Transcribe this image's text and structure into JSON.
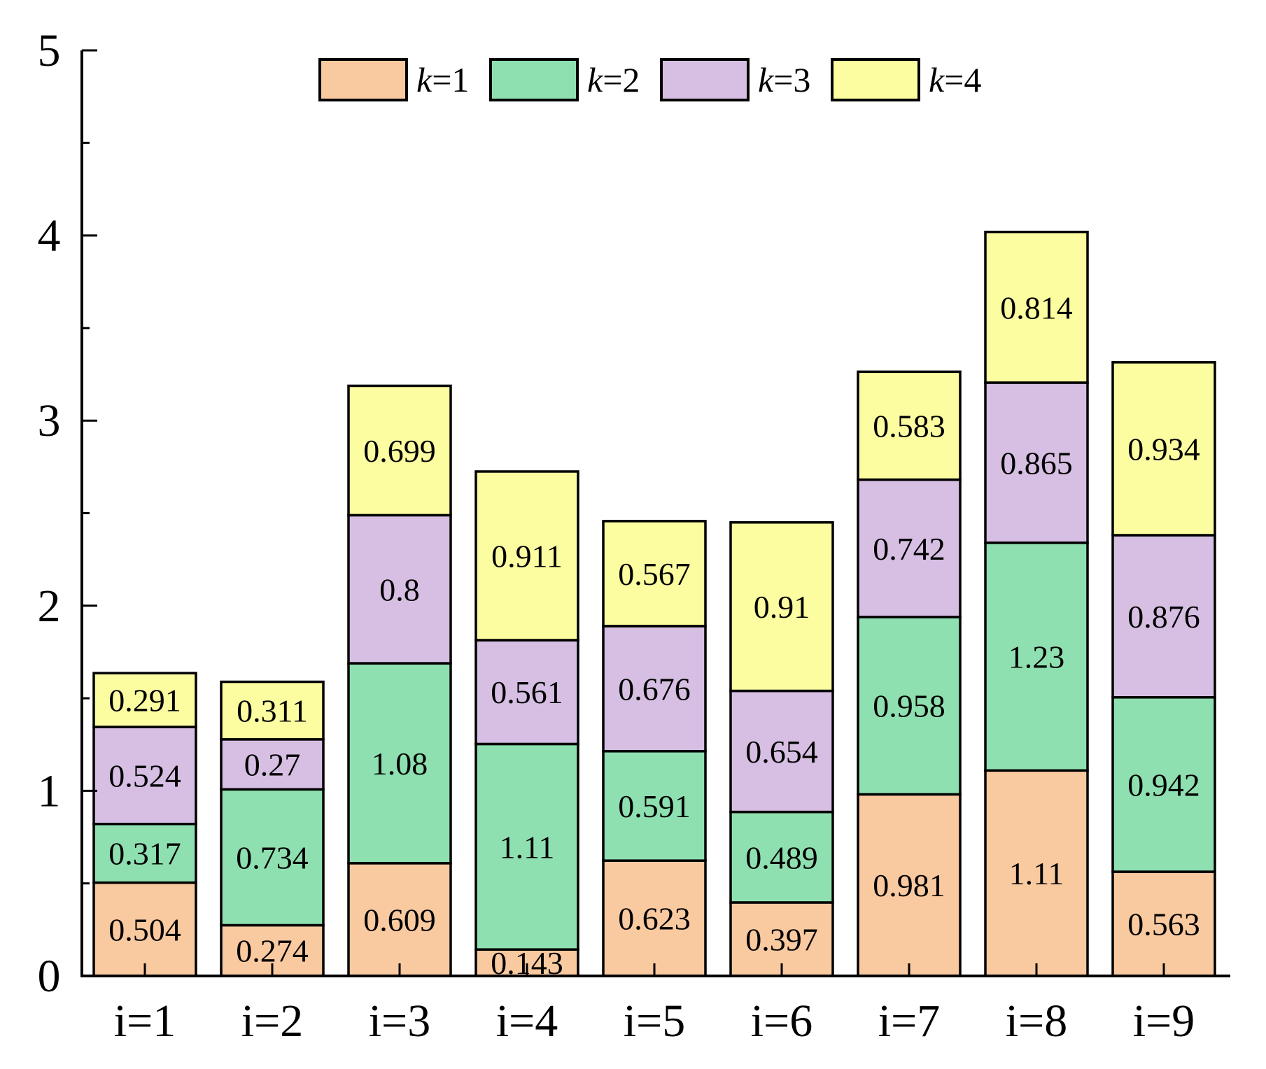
{
  "chart_data": {
    "type": "bar",
    "stacked": true,
    "title": "",
    "xlabel": "",
    "ylabel": "",
    "ylim": [
      0,
      5
    ],
    "yticks": [
      "0",
      "1",
      "2",
      "3",
      "4",
      "5"
    ],
    "categories": [
      "i=1",
      "i=2",
      "i=3",
      "i=4",
      "i=5",
      "i=6",
      "i=7",
      "i=8",
      "i=9"
    ],
    "series": [
      {
        "name": "k=1",
        "name_italic": "k",
        "name_rest": "=1",
        "color": "#f9c9a0",
        "values": [
          0.504,
          0.274,
          0.609,
          0.143,
          0.623,
          0.397,
          0.981,
          1.11,
          0.563
        ],
        "labels": [
          "0.504",
          "0.274",
          "0.609",
          "0.143",
          "0.623",
          "0.397",
          "0.981",
          "1.11",
          "0.563"
        ]
      },
      {
        "name": "k=2",
        "name_italic": "k",
        "name_rest": "=2",
        "color": "#8fe0b0",
        "values": [
          0.317,
          0.734,
          1.08,
          1.11,
          0.591,
          0.489,
          0.958,
          1.23,
          0.942
        ],
        "labels": [
          "0.317",
          "0.734",
          "1.08",
          "1.11",
          "0.591",
          "0.489",
          "0.958",
          "1.23",
          "0.942"
        ]
      },
      {
        "name": "k=3",
        "name_italic": "k",
        "name_rest": "=3",
        "color": "#d6bfe3",
        "values": [
          0.524,
          0.27,
          0.8,
          0.561,
          0.676,
          0.654,
          0.742,
          0.865,
          0.876
        ],
        "labels": [
          "0.524",
          "0.27",
          "0.8",
          "0.561",
          "0.676",
          "0.654",
          "0.742",
          "0.865",
          "0.876"
        ]
      },
      {
        "name": "k=4",
        "name_italic": "k",
        "name_rest": "=4",
        "color": "#fcfca0",
        "values": [
          0.291,
          0.311,
          0.699,
          0.911,
          0.567,
          0.91,
          0.583,
          0.814,
          0.934
        ],
        "labels": [
          "0.291",
          "0.311",
          "0.699",
          "0.911",
          "0.567",
          "0.91",
          "0.583",
          "0.814",
          "0.934"
        ]
      }
    ],
    "legend": {
      "placement": "top-center",
      "orientation": "horizontal"
    },
    "grid": false
  }
}
